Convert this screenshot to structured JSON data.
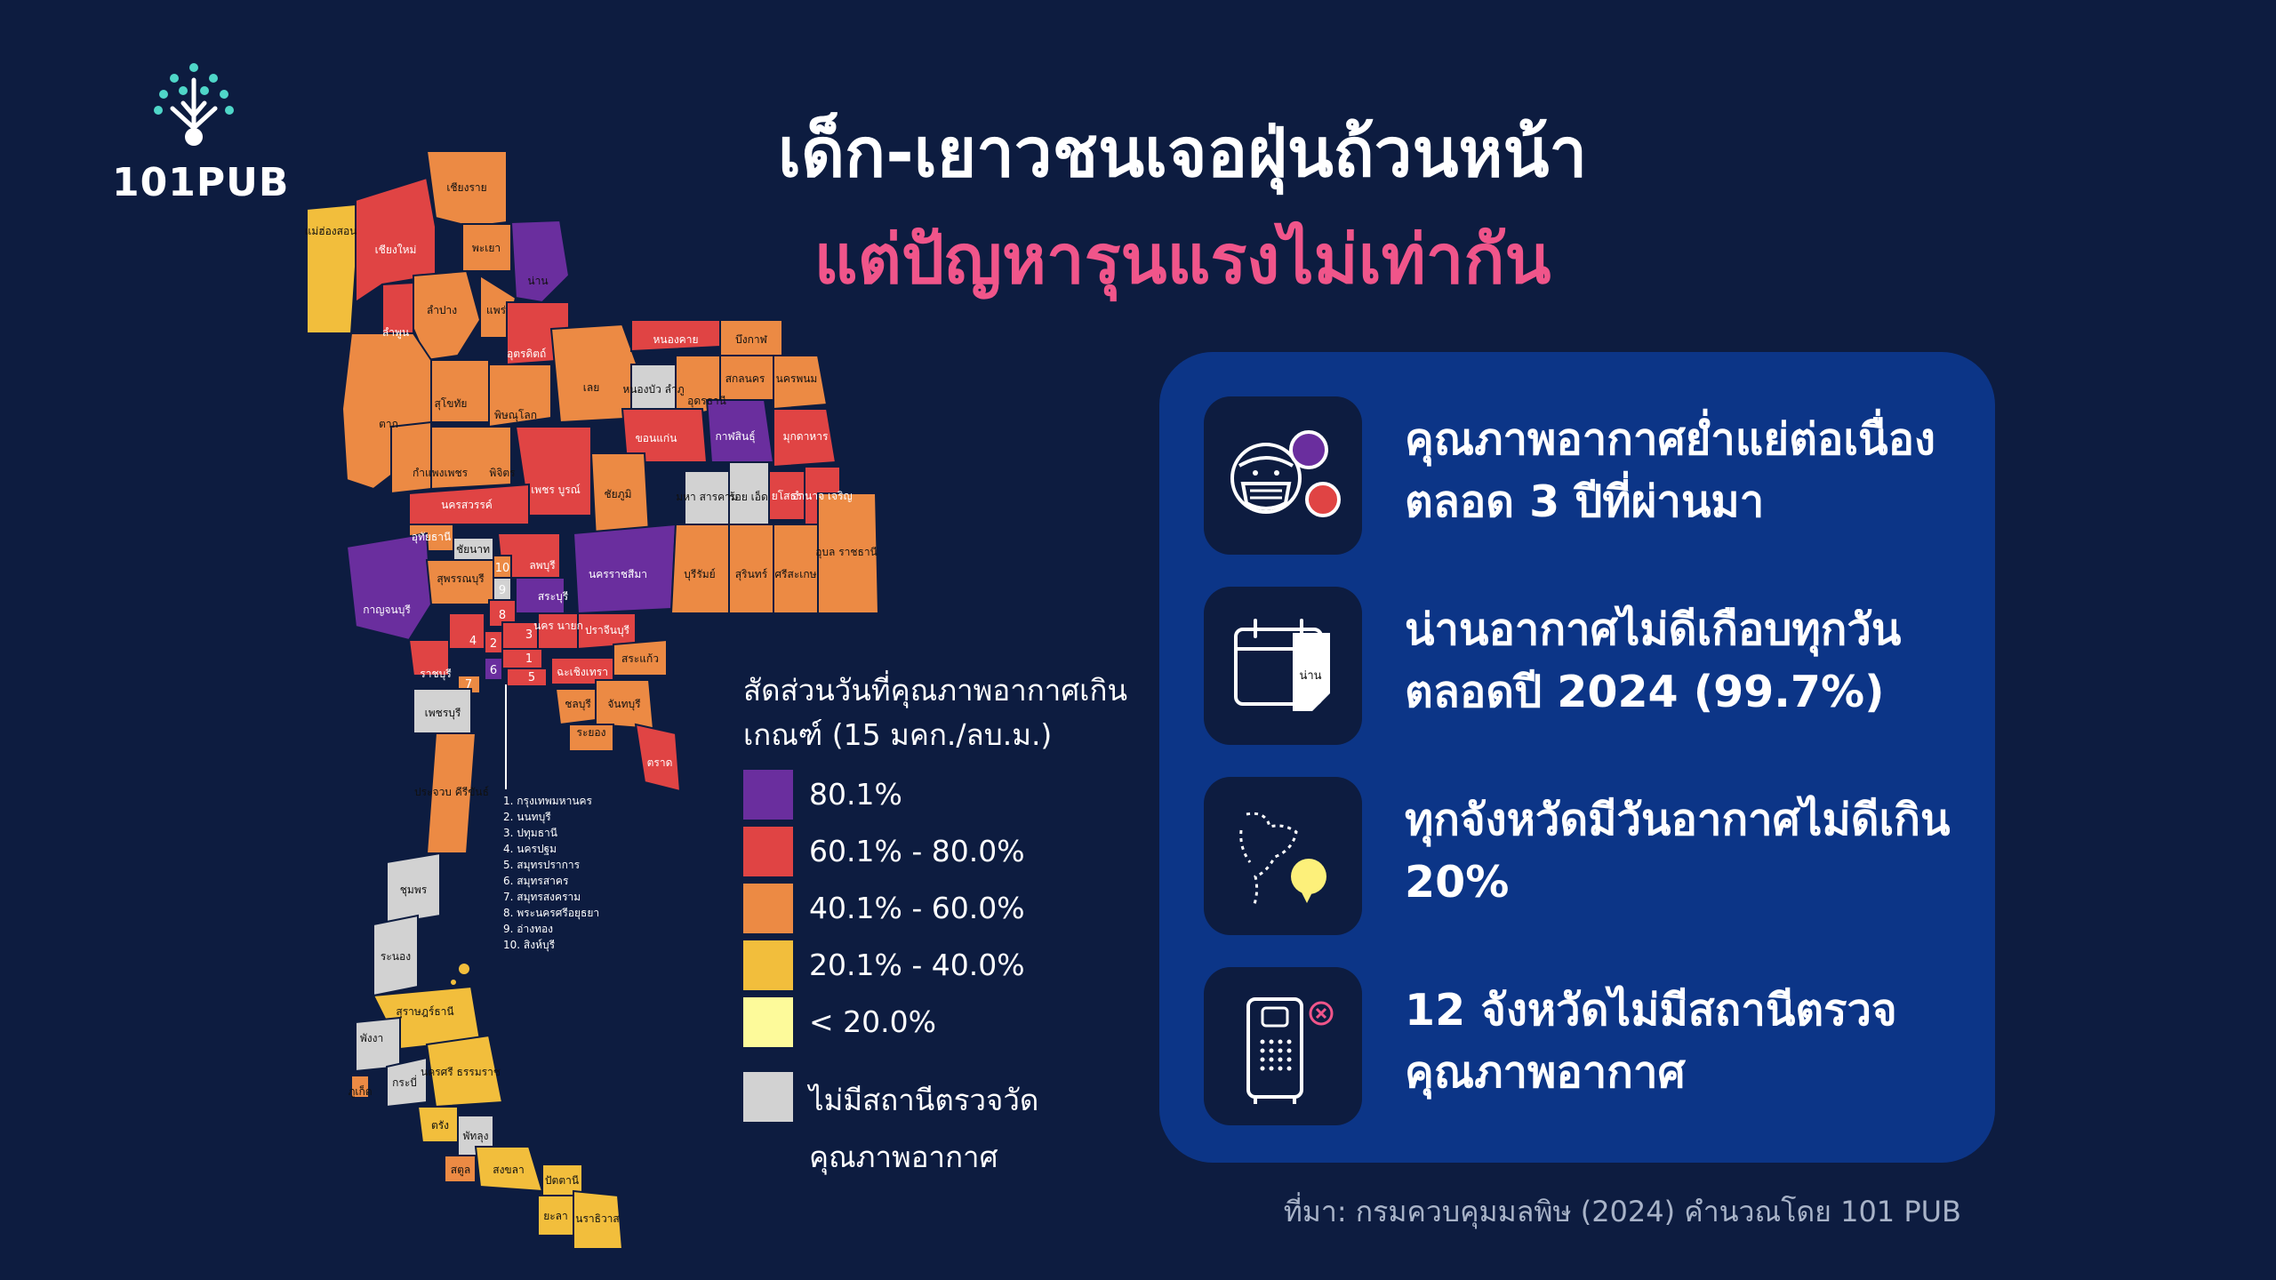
{
  "brand": {
    "logo_text": "101PUB"
  },
  "title": {
    "line1": "เด็ก-เยาวชนเจอฝุ่นถ้วนหน้า",
    "line2": "แต่ปัญหารุนแรงไม่เท่ากัน"
  },
  "colors": {
    "background": "#0d1c40",
    "panel": "#0c3587",
    "title_accent": "#f0558a",
    "cat_80_plus": "#6a2e9e",
    "cat_60_80": "#e04444",
    "cat_40_60": "#ec8a44",
    "cat_20_40": "#f2be3c",
    "cat_under_20": "#fdfa9a",
    "no_station": "#d2d2d2"
  },
  "map": {
    "provinces": [
      {
        "name": "เชียงราย",
        "category": "40.1% - 60.0%"
      },
      {
        "name": "แม่ฮ่องสอน",
        "category": "20.1% - 40.0%"
      },
      {
        "name": "เชียงใหม่",
        "category": "60.1% - 80.0%"
      },
      {
        "name": "พะเยา",
        "category": "40.1% - 60.0%"
      },
      {
        "name": "น่าน",
        "category": "80.1%"
      },
      {
        "name": "ลำปาง",
        "category": "40.1% - 60.0%"
      },
      {
        "name": "แพร่",
        "category": "40.1% - 60.0%"
      },
      {
        "name": "ลำพูน",
        "category": "60.1% - 80.0%"
      },
      {
        "name": "อุตรดิตถ์",
        "category": "60.1% - 80.0%"
      },
      {
        "name": "สุโขทัย",
        "category": "40.1% - 60.0%"
      },
      {
        "name": "ตาก",
        "category": "40.1% - 60.0%"
      },
      {
        "name": "พิษณุโลก",
        "category": "40.1% - 60.0%"
      },
      {
        "name": "เลย",
        "category": "40.1% - 60.0%"
      },
      {
        "name": "หนองคาย",
        "category": "60.1% - 80.0%"
      },
      {
        "name": "บึงกาฬ",
        "category": "40.1% - 60.0%"
      },
      {
        "name": "หนองบัว ลำภู",
        "category": "ไม่มีสถานีตรวจวัดคุณภาพอากาศ"
      },
      {
        "name": "อุดรธานี",
        "category": "40.1% - 60.0%"
      },
      {
        "name": "สกลนคร",
        "category": "40.1% - 60.0%"
      },
      {
        "name": "นครพนม",
        "category": "40.1% - 60.0%"
      },
      {
        "name": "ขอนแก่น",
        "category": "60.1% - 80.0%"
      },
      {
        "name": "กาฬสินธุ์",
        "category": "80.1%"
      },
      {
        "name": "มุกดาหาร",
        "category": "60.1% - 80.0%"
      },
      {
        "name": "กำแพงเพชร",
        "category": "40.1% - 60.0%"
      },
      {
        "name": "พิจิตร",
        "category": "40.1% - 60.0%"
      },
      {
        "name": "เพชร บูรณ์",
        "category": "60.1% - 80.0%"
      },
      {
        "name": "ชัยภูมิ",
        "category": "40.1% - 60.0%"
      },
      {
        "name": "มหา สารคาม",
        "category": "ไม่มีสถานีตรวจวัดคุณภาพอากาศ"
      },
      {
        "name": "ร้อย เอ็ด",
        "category": "ไม่มีสถานีตรวจวัดคุณภาพอากาศ"
      },
      {
        "name": "ยโสธร",
        "category": "60.1% - 80.0%"
      },
      {
        "name": "อำนาจ เจริญ",
        "category": "60.1% - 80.0%"
      },
      {
        "name": "นครสวรรค์",
        "category": "60.1% - 80.0%"
      },
      {
        "name": "อุทัยธานี",
        "category": "40.1% - 60.0%"
      },
      {
        "name": "ชัยนาท",
        "category": "ไม่มีสถานีตรวจวัดคุณภาพอากาศ"
      },
      {
        "name": "ลพบุรี",
        "category": "60.1% - 80.0%"
      },
      {
        "name": "นครราชสีมา",
        "category": "80.1%"
      },
      {
        "name": "บุรีรัมย์",
        "category": "40.1% - 60.0%"
      },
      {
        "name": "สุรินทร์",
        "category": "40.1% - 60.0%"
      },
      {
        "name": "ศรีสะเกษ",
        "category": "40.1% - 60.0%"
      },
      {
        "name": "อุบล ราชธานี",
        "category": "40.1% - 60.0%"
      },
      {
        "name": "กาญจนบุรี",
        "category": "80.1%"
      },
      {
        "name": "สุพรรณบุรี",
        "category": "40.1% - 60.0%"
      },
      {
        "name": "สระบุรี",
        "category": "80.1%"
      },
      {
        "name": "นคร นายก",
        "category": "60.1% - 80.0%"
      },
      {
        "name": "ปราจีนบุรี",
        "category": "60.1% - 80.0%"
      },
      {
        "name": "สระแก้ว",
        "category": "40.1% - 60.0%"
      },
      {
        "name": "ฉะเชิงเทรา",
        "category": "60.1% - 80.0%"
      },
      {
        "name": "ราชบุรี",
        "category": "60.1% - 80.0%"
      },
      {
        "name": "ชลบุรี",
        "category": "40.1% - 60.0%"
      },
      {
        "name": "จันทบุรี",
        "category": "40.1% - 60.0%"
      },
      {
        "name": "ระยอง",
        "category": "40.1% - 60.0%"
      },
      {
        "name": "ตราด",
        "category": "60.1% - 80.0%"
      },
      {
        "name": "เพชรบุรี",
        "category": "ไม่มีสถานีตรวจวัดคุณภาพอากาศ"
      },
      {
        "name": "ประจวบ คีรีขันธ์",
        "category": "40.1% - 60.0%"
      },
      {
        "name": "ชุมพร",
        "category": "ไม่มีสถานีตรวจวัดคุณภาพอากาศ"
      },
      {
        "name": "ระนอง",
        "category": "ไม่มีสถานีตรวจวัดคุณภาพอากาศ"
      },
      {
        "name": "สุราษฎร์ธานี",
        "category": "20.1% - 40.0%"
      },
      {
        "name": "พังงา",
        "category": "ไม่มีสถานีตรวจวัดคุณภาพอากาศ"
      },
      {
        "name": "กระบี่",
        "category": "ไม่มีสถานีตรวจวัดคุณภาพอากาศ"
      },
      {
        "name": "นครศรี ธรรมราช",
        "category": "20.1% - 40.0%"
      },
      {
        "name": "ภูเก็ต",
        "category": "40.1% - 60.0%"
      },
      {
        "name": "ตรัง",
        "category": "20.1% - 40.0%"
      },
      {
        "name": "พัทลุง",
        "category": "ไม่มีสถานีตรวจวัดคุณภาพอากาศ"
      },
      {
        "name": "สตูล",
        "category": "40.1% - 60.0%"
      },
      {
        "name": "สงขลา",
        "category": "20.1% - 40.0%"
      },
      {
        "name": "ปัตตานี",
        "category": "20.1% - 40.0%"
      },
      {
        "name": "ยะลา",
        "category": "20.1% - 40.0%"
      },
      {
        "name": "นราธิวาส",
        "category": "20.1% - 40.0%"
      }
    ],
    "numbered_markers": [
      "1",
      "2",
      "3",
      "4",
      "5",
      "6",
      "7",
      "8",
      "9",
      "10"
    ],
    "numbered_key": [
      "1.   กรุงเทพมหานคร",
      "2.   นนทบุรี",
      "3.   ปทุมธานี",
      "4.   นครปฐม",
      "5.   สมุทรปราการ",
      "6.   สมุทรสาคร",
      "7.   สมุทรสงคราม",
      "8.   พระนครศรีอยุธยา",
      "9.   อ่างทอง",
      "10.   สิงห์บุรี"
    ]
  },
  "legend": {
    "title": "สัดส่วนวันที่คุณภาพอากาศเกินเกณฑ์ (15 มคก./ลบ.ม.)",
    "items": [
      {
        "label": "80.1%",
        "color": "#6a2e9e"
      },
      {
        "label": "60.1% - 80.0%",
        "color": "#e04444"
      },
      {
        "label": "40.1% - 60.0%",
        "color": "#ec8a44"
      },
      {
        "label": "20.1% - 40.0%",
        "color": "#f2be3c"
      },
      {
        "label": "< 20.0%",
        "color": "#fdfa9a"
      }
    ],
    "no_data": {
      "label": "ไม่มีสถานีตรวจวัดคุณภาพอากาศ",
      "color": "#d2d2d2"
    }
  },
  "findings": [
    {
      "icon": "masked-face-icon",
      "text": "คุณภาพอากาศย่ำแย่ต่อเนื่องตลอด 3 ปีที่ผ่านมา"
    },
    {
      "icon": "calendar-icon",
      "text": "น่านอากาศไม่ดีเกือบทุกวันตลอดปี 2024 (99.7%)",
      "icon_label": "น่าน"
    },
    {
      "icon": "thailand-map-icon",
      "text": "ทุกจังหวัดมีวันอากาศไม่ดีเกิน 20%"
    },
    {
      "icon": "air-monitor-icon",
      "text": "12 จังหวัดไม่มีสถานีตรวจคุณภาพอากาศ"
    }
  ],
  "source": "ที่มา: กรมควบคุมมลพิษ (2024) คำนวณโดย 101 PUB"
}
